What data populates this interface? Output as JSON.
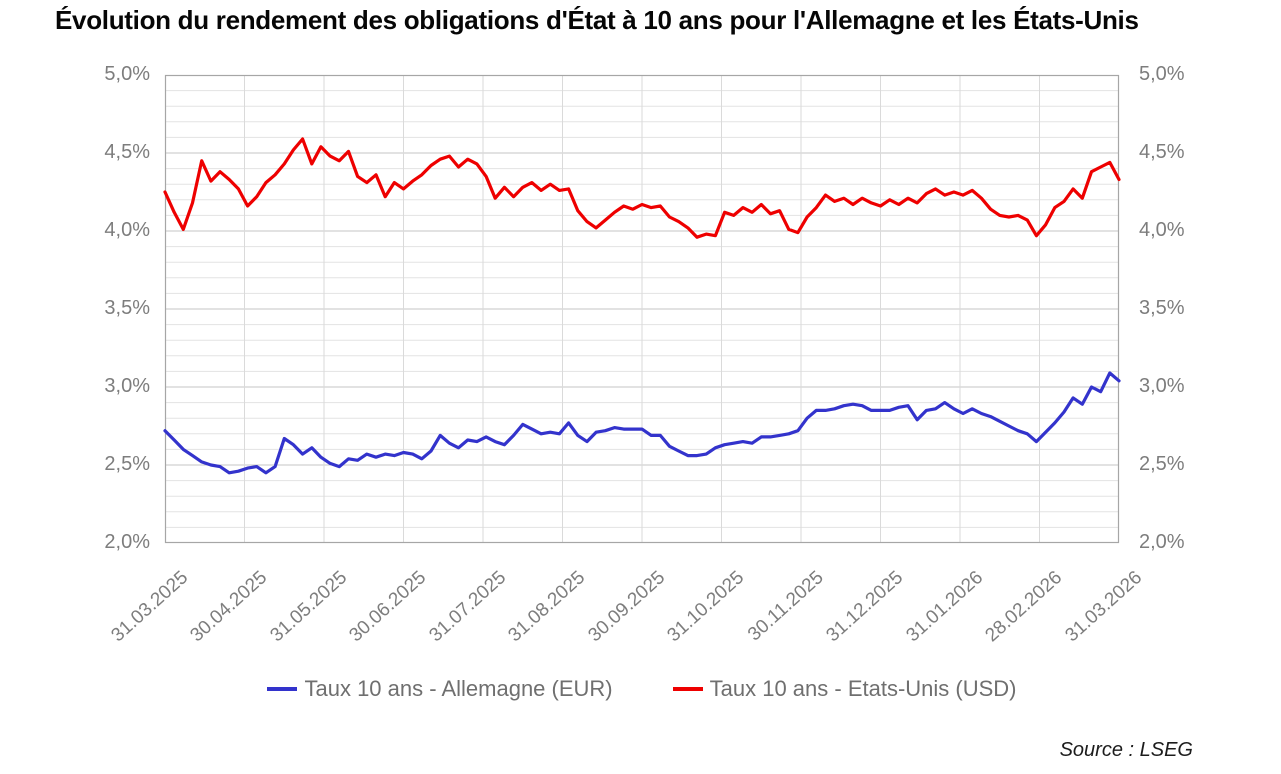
{
  "title": "Évolution du rendement des obligations d'État à 10 ans pour l'Allemagne et les États-Unis",
  "source": {
    "text": "Source : LSEG"
  },
  "chart_data": {
    "type": "line",
    "title": "Évolution du rendement des obligations d'État à 10 ans pour l'Allemagne et les États-Unis",
    "xlabel": "",
    "ylabel": "",
    "ylim": [
      2.0,
      5.0
    ],
    "y_major_step": 0.5,
    "y_minor_step": 0.1,
    "y_tick_labels": [
      "5,0%",
      "4,5%",
      "4,0%",
      "3,5%",
      "3,0%",
      "2,5%",
      "2,0%"
    ],
    "y_tick_values": [
      5.0,
      4.5,
      4.0,
      3.5,
      3.0,
      2.5,
      2.0
    ],
    "x_tick_labels": [
      "31.03.2025",
      "30.04.2025",
      "31.05.2025",
      "30.06.2025",
      "31.07.2025",
      "31.08.2025",
      "30.09.2025",
      "31.10.2025",
      "30.11.2025",
      "31.12.2025",
      "31.01.2026",
      "28.02.2026",
      "31.03.2026"
    ],
    "grid": "on",
    "legend_position": "bottom",
    "axis_label_color": "#7d7d7d",
    "gridline_minor_color": "#e3e3e3",
    "gridline_major_color": "#c6c6c6",
    "gridline_vertical_color": "#dadada",
    "plot_border_color": "#a6a6a6",
    "series": [
      {
        "name": "Taux 10 ans - Allemagne (EUR)",
        "id": "germany",
        "color": "#3333cc",
        "unit": "%",
        "values": [
          2.72,
          2.66,
          2.6,
          2.56,
          2.52,
          2.5,
          2.49,
          2.45,
          2.46,
          2.48,
          2.49,
          2.45,
          2.49,
          2.67,
          2.63,
          2.57,
          2.61,
          2.55,
          2.51,
          2.49,
          2.54,
          2.53,
          2.57,
          2.55,
          2.57,
          2.56,
          2.58,
          2.57,
          2.54,
          2.59,
          2.69,
          2.64,
          2.61,
          2.66,
          2.65,
          2.68,
          2.65,
          2.63,
          2.69,
          2.76,
          2.73,
          2.7,
          2.71,
          2.7,
          2.77,
          2.69,
          2.65,
          2.71,
          2.72,
          2.74,
          2.73,
          2.73,
          2.73,
          2.69,
          2.69,
          2.62,
          2.59,
          2.56,
          2.56,
          2.57,
          2.61,
          2.63,
          2.64,
          2.65,
          2.64,
          2.68,
          2.68,
          2.69,
          2.7,
          2.72,
          2.8,
          2.85,
          2.85,
          2.86,
          2.88,
          2.89,
          2.88,
          2.85,
          2.85,
          2.85,
          2.87,
          2.88,
          2.79,
          2.85,
          2.86,
          2.9,
          2.86,
          2.83,
          2.86,
          2.83,
          2.81,
          2.78,
          2.75,
          2.72,
          2.7,
          2.65,
          2.71,
          2.77,
          2.84,
          2.93,
          2.89,
          3.0,
          2.97,
          3.09,
          3.04
        ]
      },
      {
        "name": "Taux 10 ans - Etats-Unis (USD)",
        "id": "us",
        "color": "#ee0000",
        "unit": "%",
        "values": [
          4.25,
          4.12,
          4.01,
          4.18,
          4.45,
          4.32,
          4.38,
          4.33,
          4.27,
          4.16,
          4.22,
          4.31,
          4.36,
          4.43,
          4.52,
          4.59,
          4.43,
          4.54,
          4.48,
          4.45,
          4.51,
          4.35,
          4.31,
          4.36,
          4.22,
          4.31,
          4.27,
          4.32,
          4.36,
          4.42,
          4.46,
          4.48,
          4.41,
          4.46,
          4.43,
          4.35,
          4.21,
          4.28,
          4.22,
          4.28,
          4.31,
          4.26,
          4.3,
          4.26,
          4.27,
          4.13,
          4.06,
          4.02,
          4.07,
          4.12,
          4.16,
          4.14,
          4.17,
          4.15,
          4.16,
          4.09,
          4.06,
          4.02,
          3.96,
          3.98,
          3.97,
          4.12,
          4.1,
          4.15,
          4.12,
          4.17,
          4.11,
          4.13,
          4.01,
          3.99,
          4.09,
          4.15,
          4.23,
          4.19,
          4.21,
          4.17,
          4.21,
          4.18,
          4.16,
          4.2,
          4.17,
          4.21,
          4.18,
          4.24,
          4.27,
          4.23,
          4.25,
          4.23,
          4.26,
          4.21,
          4.14,
          4.1,
          4.09,
          4.1,
          4.07,
          3.97,
          4.04,
          4.15,
          4.19,
          4.27,
          4.21,
          4.38,
          4.41,
          4.44,
          4.33
        ]
      }
    ]
  }
}
